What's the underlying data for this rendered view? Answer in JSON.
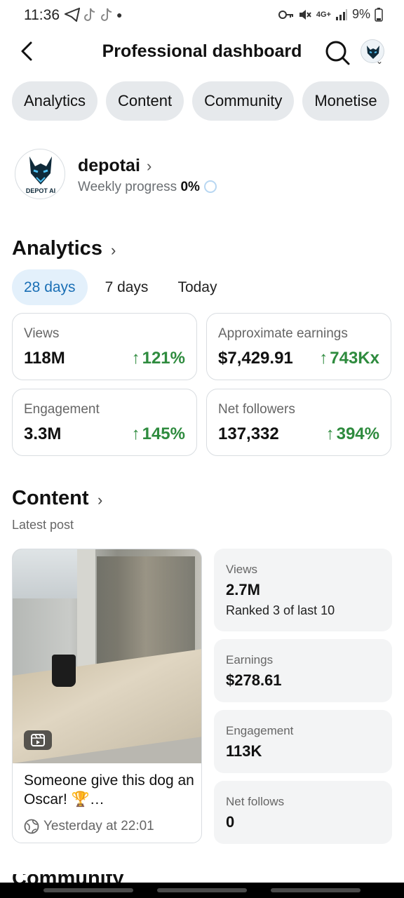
{
  "status_bar": {
    "time": "11:36",
    "battery": "9%",
    "network": "4G+"
  },
  "header": {
    "title": "Professional dashboard"
  },
  "tabs": [
    "Analytics",
    "Content",
    "Community",
    "Monetise"
  ],
  "profile": {
    "name": "depotai",
    "progress_label": "Weekly progress",
    "progress_value": "0%",
    "logo_text": "DEPOT AI"
  },
  "analytics": {
    "title": "Analytics",
    "filters": [
      "28 days",
      "7 days",
      "Today"
    ],
    "active_filter": "28 days",
    "metrics": [
      {
        "label": "Views",
        "value": "118M",
        "change": "121%"
      },
      {
        "label": "Approximate earnings",
        "value": "$7,429.91",
        "change": "743Kx"
      },
      {
        "label": "Engagement",
        "value": "3.3M",
        "change": "145%"
      },
      {
        "label": "Net followers",
        "value": "137,332",
        "change": "394%"
      }
    ]
  },
  "content": {
    "title": "Content",
    "subtitle": "Latest post",
    "post": {
      "caption": "Someone give this dog an Oscar! 🏆…",
      "time": "Yesterday at 22:01"
    },
    "stats": [
      {
        "label": "Views",
        "value": "2.7M",
        "note": "Ranked 3 of last 10"
      },
      {
        "label": "Earnings",
        "value": "$278.61"
      },
      {
        "label": "Engagement",
        "value": "113K"
      },
      {
        "label": "Net follows",
        "value": "0"
      }
    ]
  },
  "next_section": "Community",
  "colors": {
    "accent": "#1a6fb5",
    "positive": "#2e8b3e",
    "chip_bg": "#e6e9ec",
    "card_bg": "#f3f4f5"
  },
  "icons": [
    "back-arrow-icon",
    "search-icon",
    "globe-icon",
    "reel-icon",
    "chevron-right-icon"
  ]
}
